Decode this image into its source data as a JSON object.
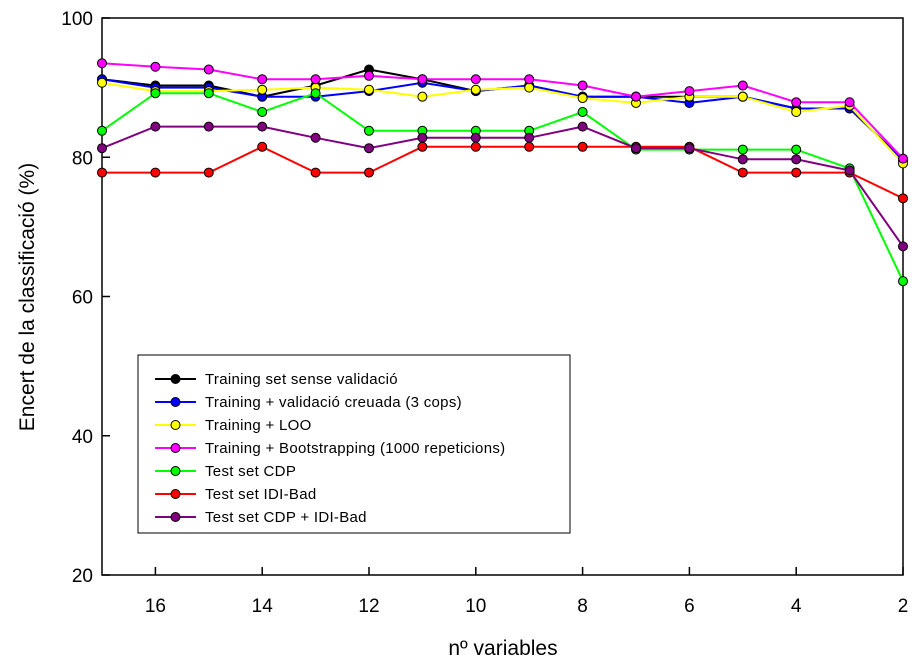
{
  "chart_data": {
    "type": "line",
    "title": "",
    "xlabel": "nº variables",
    "ylabel": "Encert de la classificació (%)",
    "xlim": [
      17,
      2
    ],
    "ylim": [
      20,
      100
    ],
    "x_reversed": true,
    "x_ticks": [
      16,
      14,
      12,
      10,
      8,
      6,
      4,
      2
    ],
    "y_ticks": [
      20,
      40,
      60,
      80,
      100
    ],
    "grid": false,
    "legend_position": "lower-left",
    "x": [
      17,
      16,
      15,
      14,
      13,
      12,
      11,
      10,
      9,
      8,
      7,
      6,
      5,
      4,
      3,
      2
    ],
    "series": [
      {
        "name": "Training set sense validació",
        "color": "#000000",
        "values": [
          91.2,
          90.3,
          90.3,
          88.7,
          90.3,
          92.6,
          91.2,
          89.5,
          90.3,
          88.7,
          88.7,
          88.7,
          88.7,
          87.0,
          87.0,
          79.6
        ]
      },
      {
        "name": "Training + validació creuada (3 cops)",
        "color": "#0000ff",
        "values": [
          91.2,
          90.0,
          90.0,
          88.7,
          88.7,
          89.5,
          90.7,
          89.5,
          90.3,
          88.7,
          88.7,
          87.8,
          88.7,
          87.0,
          87.0,
          79.6
        ]
      },
      {
        "name": "Training + LOO",
        "color": "#ffff00",
        "values": [
          90.7,
          89.5,
          89.5,
          89.7,
          90.0,
          89.7,
          88.7,
          89.7,
          90.0,
          88.5,
          87.8,
          88.7,
          88.7,
          86.5,
          87.4,
          79.1
        ]
      },
      {
        "name": "Training + Bootstrapping (1000 repeticions)",
        "color": "#ff00ff",
        "values": [
          93.5,
          93.0,
          92.6,
          91.2,
          91.2,
          91.7,
          91.2,
          91.2,
          91.2,
          90.3,
          88.7,
          89.5,
          90.3,
          87.9,
          87.9,
          79.8
        ]
      },
      {
        "name": "Test set CDP",
        "color": "#00ff00",
        "values": [
          83.8,
          89.2,
          89.2,
          86.5,
          89.2,
          83.8,
          83.8,
          83.8,
          83.8,
          86.5,
          81.1,
          81.1,
          81.1,
          81.1,
          78.4,
          62.2
        ]
      },
      {
        "name": "Test set IDI-Bad",
        "color": "#ff0000",
        "values": [
          77.8,
          77.8,
          77.8,
          81.5,
          77.8,
          77.8,
          81.5,
          81.5,
          81.5,
          81.5,
          81.5,
          81.5,
          77.8,
          77.8,
          77.8,
          74.1
        ]
      },
      {
        "name": "Test set CDP + IDI-Bad",
        "color": "#800080",
        "values": [
          81.3,
          84.4,
          84.4,
          84.4,
          82.8,
          81.3,
          82.8,
          82.8,
          82.8,
          84.4,
          81.3,
          81.3,
          79.7,
          79.7,
          78.1,
          67.2
        ]
      }
    ]
  }
}
